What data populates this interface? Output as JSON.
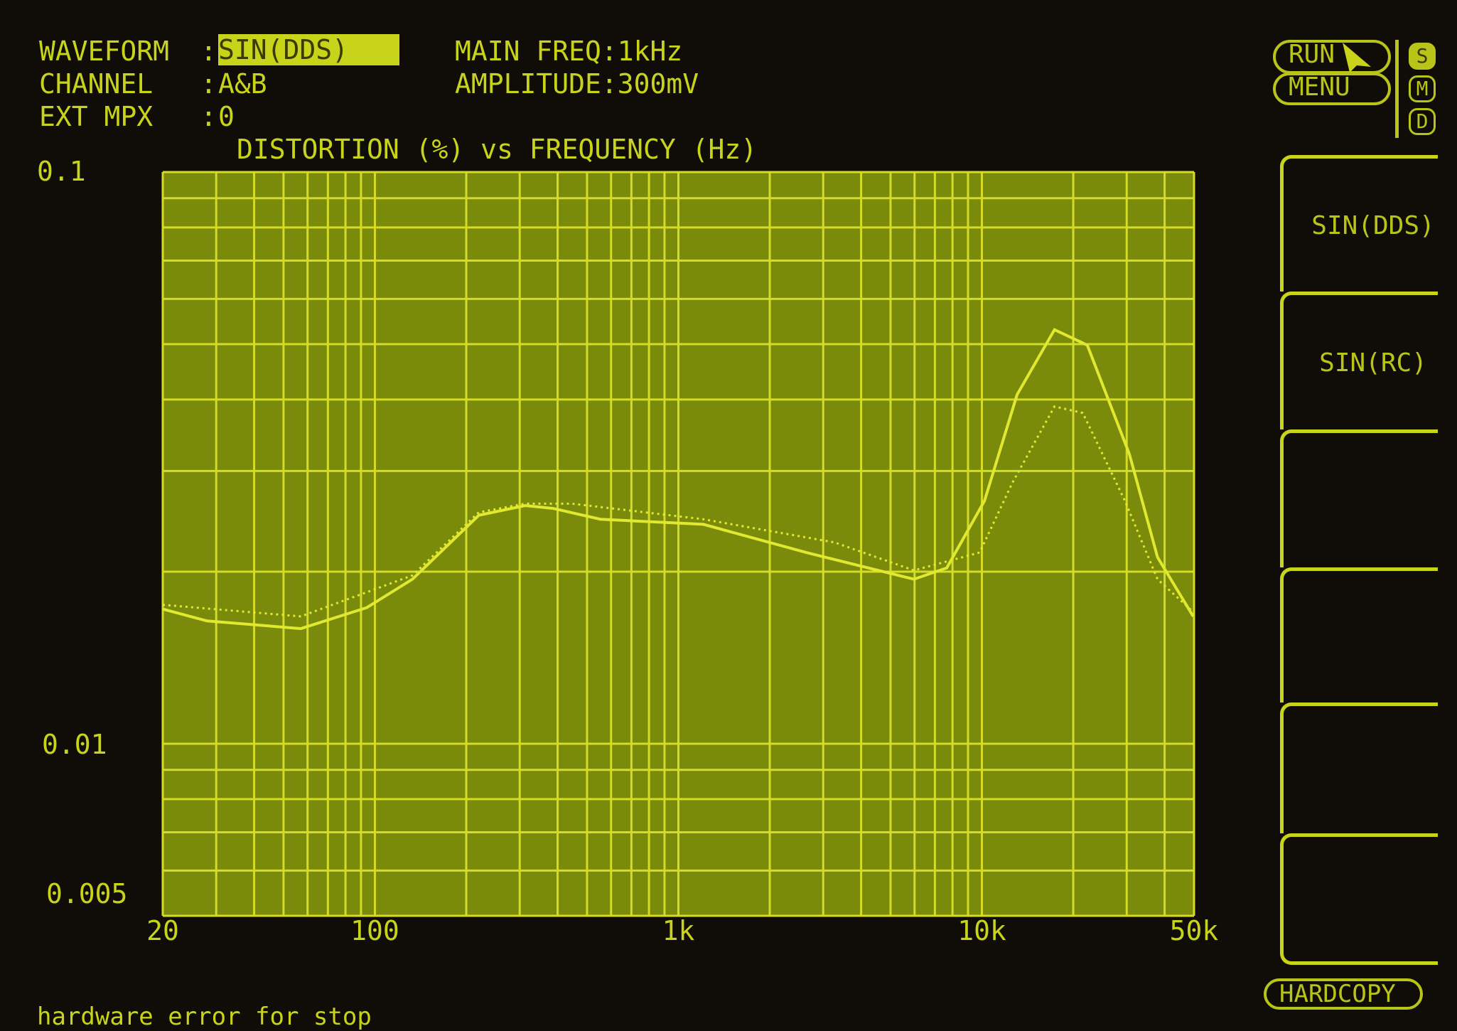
{
  "header": {
    "waveform_label": "WAVEFORM",
    "waveform_value": "SIN(DDS)",
    "channel_label": "CHANNEL",
    "channel_value": "A&B",
    "ext_mpx_label": "EXT MPX",
    "ext_mpx_value": "0",
    "separator": ":",
    "main_freq": "MAIN FREQ:1kHz",
    "amplitude": "AMPLITUDE:300mV"
  },
  "controls": {
    "run_label": "RUN",
    "menu_label": "MENU",
    "modes": [
      {
        "label": "S",
        "active": true
      },
      {
        "label": "M",
        "active": false
      },
      {
        "label": "D",
        "active": false
      }
    ],
    "hardcopy_label": "HARDCOPY"
  },
  "softkeys": [
    {
      "label": "SIN(DDS)"
    },
    {
      "label": "SIN(RC)"
    },
    {
      "label": ""
    },
    {
      "label": ""
    },
    {
      "label": ""
    },
    {
      "label": ""
    }
  ],
  "status_message": "hardware error for stop",
  "colors": {
    "background": "#100c08",
    "plot_fill": "#7a8a0a",
    "grid": "#d4dc28",
    "trace": "#e0e830",
    "text": "#c8d41a"
  },
  "chart_data": {
    "type": "line",
    "title": "DISTORTION (%) vs FREQUENCY (Hz)",
    "x_scale": "log",
    "y_scale": "log",
    "xlim": [
      20,
      50000
    ],
    "ylim": [
      0.005,
      0.1
    ],
    "x_tick_labels": [
      {
        "value": 20,
        "label": "20"
      },
      {
        "value": 100,
        "label": "100"
      },
      {
        "value": 1000,
        "label": "1k"
      },
      {
        "value": 10000,
        "label": "10k"
      },
      {
        "value": 50000,
        "label": "50k"
      }
    ],
    "y_tick_labels": [
      {
        "value": 0.1,
        "label": "0.1"
      },
      {
        "value": 0.01,
        "label": "0.01"
      },
      {
        "value": 0.005,
        "label": "0.005"
      }
    ],
    "grid": true,
    "series": [
      {
        "style": "solid",
        "points": [
          [
            20,
            0.0172
          ],
          [
            28,
            0.0164
          ],
          [
            57,
            0.0159
          ],
          [
            94,
            0.0173
          ],
          [
            133,
            0.0194
          ],
          [
            220,
            0.0251
          ],
          [
            313,
            0.0261
          ],
          [
            387,
            0.0258
          ],
          [
            553,
            0.0247
          ],
          [
            1208,
            0.0242
          ],
          [
            2640,
            0.0216
          ],
          [
            5970,
            0.0194
          ],
          [
            7660,
            0.0203
          ],
          [
            10200,
            0.0266
          ],
          [
            13060,
            0.0408
          ],
          [
            17350,
            0.053
          ],
          [
            22250,
            0.0498
          ],
          [
            30620,
            0.0321
          ],
          [
            37900,
            0.0212
          ],
          [
            49700,
            0.0167
          ]
        ]
      },
      {
        "style": "dotted",
        "points": [
          [
            20,
            0.0175
          ],
          [
            57,
            0.0167
          ],
          [
            133,
            0.0197
          ],
          [
            220,
            0.0254
          ],
          [
            313,
            0.0263
          ],
          [
            446,
            0.0263
          ],
          [
            1208,
            0.0247
          ],
          [
            3270,
            0.0225
          ],
          [
            5970,
            0.0201
          ],
          [
            9830,
            0.0216
          ],
          [
            12600,
            0.0286
          ],
          [
            17350,
            0.0389
          ],
          [
            21500,
            0.0379
          ],
          [
            29600,
            0.0266
          ],
          [
            37900,
            0.0194
          ],
          [
            49700,
            0.017
          ]
        ]
      }
    ]
  }
}
